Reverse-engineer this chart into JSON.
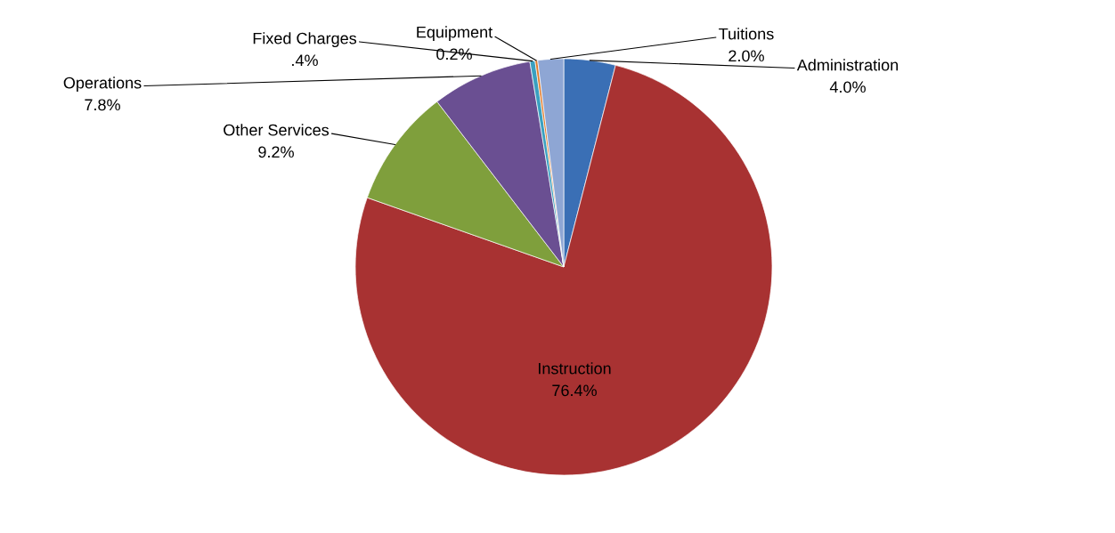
{
  "chart_data": {
    "type": "pie",
    "categories": [
      "Administration",
      "Instruction",
      "Other Services",
      "Operations",
      "Fixed Charges",
      "Equipment",
      "Tuitions"
    ],
    "values": [
      4.0,
      76.4,
      9.2,
      7.8,
      0.4,
      0.2,
      2.0
    ],
    "colors": [
      "#3a6fb5",
      "#a83232",
      "#7f9f3c",
      "#6a4f92",
      "#3aa0c0",
      "#e07b2a",
      "#8ea6d4"
    ],
    "value_labels": [
      "4.0%",
      "76.4%",
      "9.2%",
      "7.8%",
      ".4%",
      "0.2%",
      "2.0%"
    ],
    "legend": false
  }
}
